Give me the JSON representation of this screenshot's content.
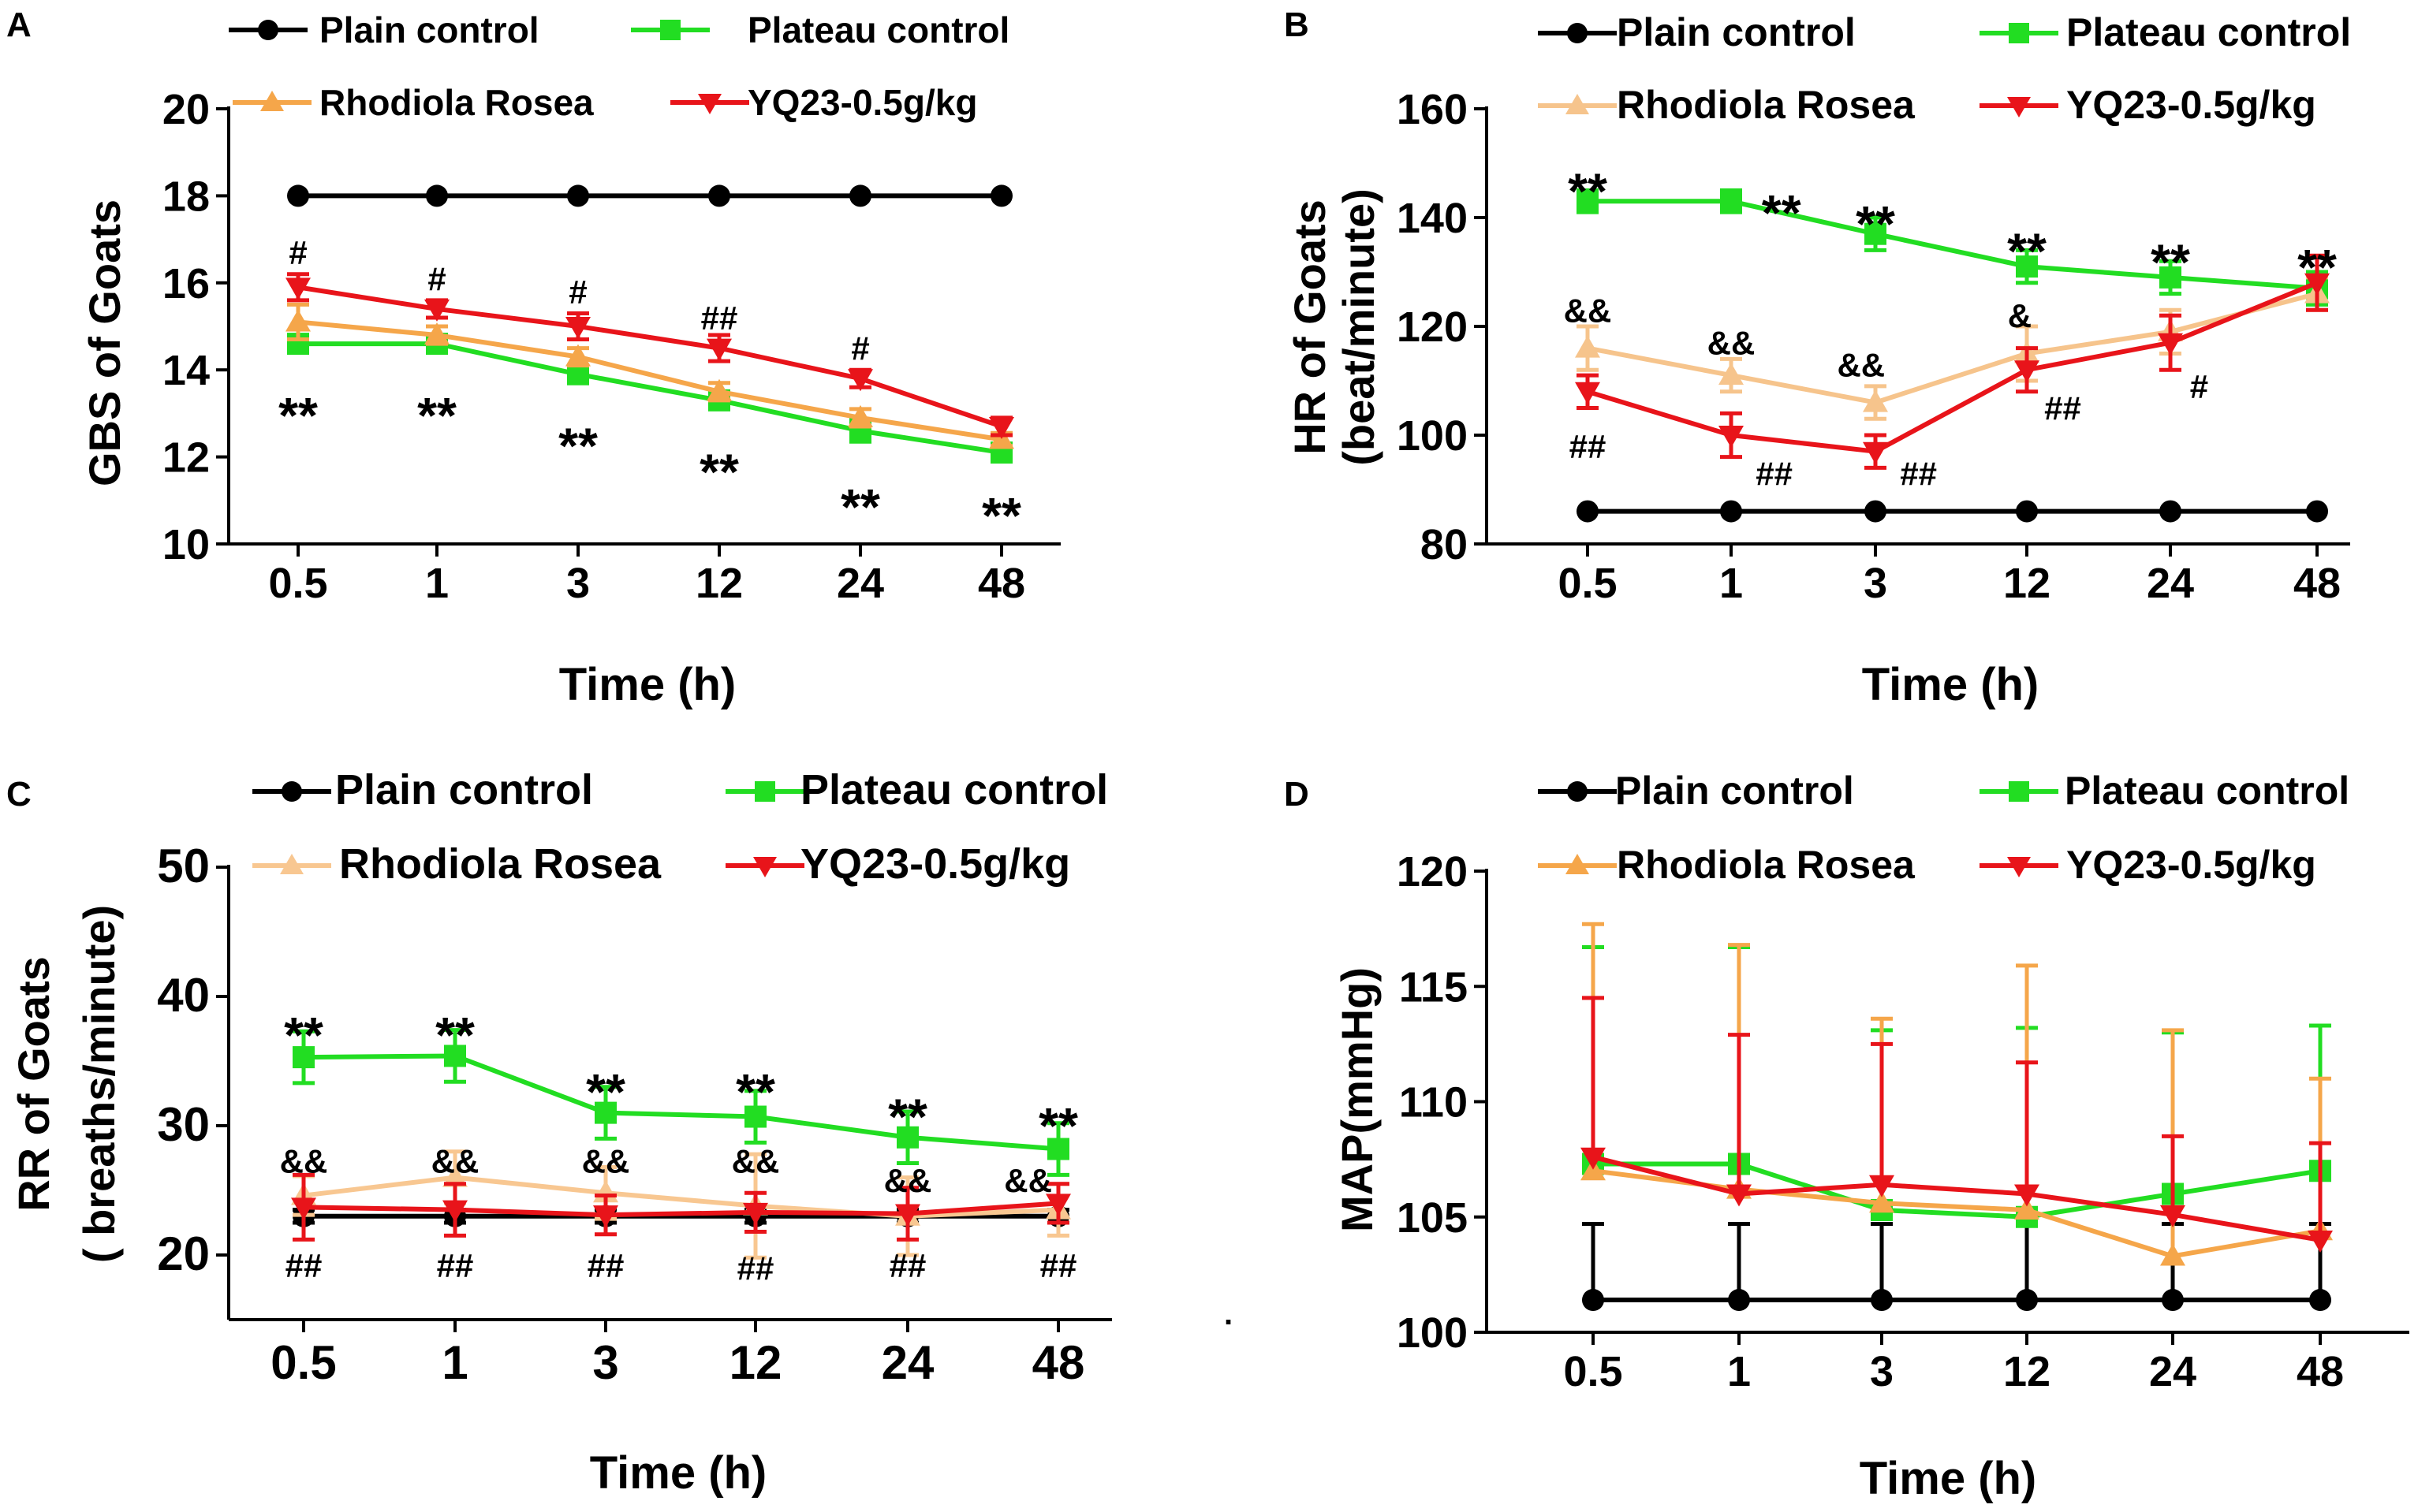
{
  "colors": {
    "plain": "#000000",
    "plateau": "#22dd22",
    "rhodiola_A": "#f5a64a",
    "rhodiola_B": "#f6c48c",
    "rhodiola_C": "#f8c791",
    "rhodiola_D": "#f5a64a",
    "yq23": "#e8141a"
  },
  "stray_mark": ".",
  "chart_data": [
    {
      "panel": "A",
      "type": "line",
      "title": "",
      "xlabel": "Time (h)",
      "ylabel": "GBS of Goats",
      "ylabel2": "",
      "categories": [
        "0.5",
        "1",
        "3",
        "12",
        "24",
        "48"
      ],
      "ylim": [
        10,
        20
      ],
      "yticks": [
        10,
        12,
        14,
        16,
        18,
        20
      ],
      "legend": [
        "Plain control",
        "Plateau control",
        "Rhodiola Rosea",
        "YQ23-0.5g/kg"
      ],
      "legend_placement": "top",
      "series": [
        {
          "name": "Plain control",
          "key": "plain",
          "marker": "circle",
          "values": [
            18,
            18,
            18,
            18,
            18,
            18
          ],
          "err": [
            0,
            0,
            0,
            0,
            0,
            0
          ],
          "err_dir": "both"
        },
        {
          "name": "Plateau control",
          "key": "plateau",
          "marker": "square",
          "values": [
            14.6,
            14.6,
            13.9,
            13.3,
            12.6,
            12.1
          ],
          "err": [
            0.2,
            0.2,
            0.2,
            0.2,
            0.25,
            0.2
          ],
          "err_dir": "both"
        },
        {
          "name": "Rhodiola Rosea",
          "key": "rhodiola_A",
          "marker": "triangle-up",
          "values": [
            15.1,
            14.8,
            14.3,
            13.5,
            12.9,
            12.4
          ],
          "err": [
            0.4,
            0.2,
            0.2,
            0.2,
            0.2,
            0.15
          ],
          "err_dir": "both"
        },
        {
          "name": "YQ23-0.5g/kg",
          "key": "yq23",
          "marker": "triangle-down",
          "values": [
            15.9,
            15.4,
            15.0,
            14.5,
            13.8,
            12.7
          ],
          "err": [
            0.3,
            0.2,
            0.3,
            0.3,
            0.2,
            0.2
          ],
          "err_dir": "both"
        }
      ],
      "annotations": [
        {
          "text": "#",
          "cat": 0,
          "y": 16.7,
          "size": "s"
        },
        {
          "text": "**",
          "cat": 0,
          "y": 13.1,
          "size": "l"
        },
        {
          "text": "#",
          "cat": 1,
          "y": 16.1,
          "size": "s"
        },
        {
          "text": "**",
          "cat": 1,
          "y": 13.1,
          "size": "l"
        },
        {
          "text": "#",
          "cat": 2,
          "y": 15.8,
          "size": "s"
        },
        {
          "text": "**",
          "cat": 2,
          "y": 12.4,
          "size": "l"
        },
        {
          "text": "##",
          "cat": 3,
          "y": 15.2,
          "size": "s"
        },
        {
          "text": "**",
          "cat": 3,
          "y": 11.8,
          "size": "l"
        },
        {
          "text": "#",
          "cat": 4,
          "y": 14.5,
          "size": "s"
        },
        {
          "text": "**",
          "cat": 4,
          "y": 11.0,
          "size": "l"
        },
        {
          "text": "**",
          "cat": 5,
          "y": 10.8,
          "size": "l"
        }
      ]
    },
    {
      "panel": "B",
      "type": "line",
      "title": "",
      "xlabel": "Time (h)",
      "ylabel": "HR of Goats",
      "ylabel2": "(beat/minute)",
      "categories": [
        "0.5",
        "1",
        "3",
        "12",
        "24",
        "48"
      ],
      "ylim": [
        80,
        160
      ],
      "yticks": [
        80,
        100,
        120,
        140,
        160
      ],
      "legend": [
        "Plain control",
        "Plateau control",
        "Rhodiola Rosea",
        "YQ23-0.5g/kg"
      ],
      "legend_placement": "top",
      "series": [
        {
          "name": "Plain control",
          "key": "plain",
          "marker": "circle",
          "values": [
            86,
            86,
            86,
            86,
            86,
            86
          ],
          "err": [
            0,
            0,
            0,
            0,
            0,
            0
          ],
          "err_dir": "both"
        },
        {
          "name": "Plateau control",
          "key": "plateau",
          "marker": "square",
          "values": [
            143,
            143,
            137,
            131,
            129,
            127
          ],
          "err": [
            2,
            2,
            3,
            3,
            3,
            3
          ],
          "err_dir": "both"
        },
        {
          "name": "Rhodiola Rosea",
          "key": "rhodiola_B",
          "marker": "triangle-up",
          "values": [
            116,
            111,
            106,
            115,
            119,
            126
          ],
          "err": [
            4,
            3,
            3,
            5,
            4,
            3
          ],
          "err_dir": "both"
        },
        {
          "name": "YQ23-0.5g/kg",
          "key": "yq23",
          "marker": "triangle-down",
          "values": [
            108,
            100,
            97,
            112,
            117,
            128
          ],
          "err": [
            3,
            4,
            3,
            4,
            5,
            5
          ],
          "err_dir": "both"
        }
      ],
      "annotations": [
        {
          "text": "**",
          "cat": 0,
          "y": 146,
          "size": "l"
        },
        {
          "text": "&&",
          "cat": 0,
          "y": 123,
          "size": "s"
        },
        {
          "text": "##",
          "cat": 0,
          "y": 98,
          "size": "s"
        },
        {
          "text": "**",
          "cat": 1,
          "y": 142,
          "size": "l",
          "dx": 0.35
        },
        {
          "text": "&&",
          "cat": 1,
          "y": 117,
          "size": "s"
        },
        {
          "text": "##",
          "cat": 1,
          "y": 93,
          "size": "s",
          "dx": 0.3
        },
        {
          "text": "**",
          "cat": 2,
          "y": 140,
          "size": "l"
        },
        {
          "text": "&&",
          "cat": 2,
          "y": 113,
          "size": "s",
          "dx": -0.1
        },
        {
          "text": "##",
          "cat": 2,
          "y": 93,
          "size": "s",
          "dx": 0.3
        },
        {
          "text": "**",
          "cat": 3,
          "y": 135,
          "size": "l"
        },
        {
          "text": "&",
          "cat": 3,
          "y": 122,
          "size": "s",
          "dx": -0.05
        },
        {
          "text": "##",
          "cat": 3,
          "y": 105,
          "size": "s",
          "dx": 0.25
        },
        {
          "text": "**",
          "cat": 4,
          "y": 133,
          "size": "l"
        },
        {
          "text": "#",
          "cat": 4,
          "y": 109,
          "size": "s",
          "dx": 0.2
        },
        {
          "text": "**",
          "cat": 5,
          "y": 132,
          "size": "l"
        }
      ]
    },
    {
      "panel": "C",
      "type": "line",
      "title": "",
      "xlabel": "Time (h)",
      "ylabel": "RR of Goats",
      "ylabel2": "( breaths/minute)",
      "categories": [
        "0.5",
        "1",
        "3",
        "12",
        "24",
        "48"
      ],
      "ylim": [
        15,
        50
      ],
      "yticks": [
        20,
        30,
        40,
        50
      ],
      "legend": [
        "Plain control",
        "Plateau control",
        "Rhodiola Rosea",
        "YQ23-0.5g/kg"
      ],
      "legend_placement": "top",
      "series": [
        {
          "name": "Plain control",
          "key": "plain",
          "marker": "circle",
          "values": [
            23,
            23,
            23,
            23,
            23,
            23
          ],
          "err": [
            0.5,
            0.5,
            0.5,
            0.5,
            0.5,
            0.5
          ],
          "err_dir": "both"
        },
        {
          "name": "Plateau control",
          "key": "plateau",
          "marker": "square",
          "values": [
            35.3,
            35.4,
            31,
            30.7,
            29.1,
            28.2
          ],
          "err": [
            2,
            2,
            2,
            2,
            2,
            2
          ],
          "err_dir": "both"
        },
        {
          "name": "Rhodiola Rosea",
          "key": "rhodiola_C",
          "marker": "triangle-up",
          "values": [
            24.6,
            26,
            24.8,
            23.8,
            23,
            23.5
          ],
          "err": [
            1.5,
            2,
            2,
            4,
            3,
            2
          ],
          "err_dir": "both"
        },
        {
          "name": "YQ23-0.5g/kg",
          "key": "yq23",
          "marker": "triangle-down",
          "values": [
            23.7,
            23.5,
            23.1,
            23.3,
            23.2,
            24
          ],
          "err": [
            2.5,
            2,
            1.5,
            1.5,
            2,
            1.5
          ],
          "err_dir": "both"
        }
      ],
      "annotations": [
        {
          "text": "**",
          "cat": 0,
          "y": 37.5,
          "size": "l"
        },
        {
          "text": "&&",
          "cat": 0,
          "y": 27.3,
          "size": "s"
        },
        {
          "text": "##",
          "cat": 0,
          "y": 19.2,
          "size": "s"
        },
        {
          "text": "**",
          "cat": 1,
          "y": 37.5,
          "size": "l"
        },
        {
          "text": "&&",
          "cat": 1,
          "y": 27.3,
          "size": "s"
        },
        {
          "text": "##",
          "cat": 1,
          "y": 19.2,
          "size": "s"
        },
        {
          "text": "**",
          "cat": 2,
          "y": 33.1,
          "size": "l"
        },
        {
          "text": "&&",
          "cat": 2,
          "y": 27.3,
          "size": "s"
        },
        {
          "text": "##",
          "cat": 2,
          "y": 19.2,
          "size": "s"
        },
        {
          "text": "**",
          "cat": 3,
          "y": 33.1,
          "size": "l"
        },
        {
          "text": "&&",
          "cat": 3,
          "y": 27.3,
          "size": "s"
        },
        {
          "text": "##",
          "cat": 3,
          "y": 19.0,
          "size": "s"
        },
        {
          "text": "**",
          "cat": 4,
          "y": 31.2,
          "size": "l"
        },
        {
          "text": "&&",
          "cat": 4,
          "y": 25.8,
          "size": "s"
        },
        {
          "text": "##",
          "cat": 4,
          "y": 19.2,
          "size": "s"
        },
        {
          "text": "**",
          "cat": 5,
          "y": 30.5,
          "size": "l"
        },
        {
          "text": "&&",
          "cat": 5,
          "y": 25.8,
          "size": "s",
          "dx": -0.2
        },
        {
          "text": "##",
          "cat": 5,
          "y": 19.2,
          "size": "s"
        }
      ]
    },
    {
      "panel": "D",
      "type": "line",
      "title": "",
      "xlabel": "Time (h)",
      "ylabel": "MAP(mmHg)",
      "ylabel2": "",
      "categories": [
        "0.5",
        "1",
        "3",
        "12",
        "24",
        "48"
      ],
      "ylim": [
        100,
        120
      ],
      "yticks": [
        100,
        105,
        110,
        115,
        120
      ],
      "legend": [
        "Plain control",
        "Plateau control",
        "Rhodiola Rosea",
        "YQ23-0.5g/kg"
      ],
      "legend_placement": "top",
      "series": [
        {
          "name": "Plain control",
          "key": "plain",
          "marker": "circle",
          "values": [
            101.4,
            101.4,
            101.4,
            101.4,
            101.4,
            101.4
          ],
          "err": [
            3.3,
            3.3,
            3.3,
            3.3,
            3.3,
            3.3
          ],
          "err_dir": "up"
        },
        {
          "name": "Plateau control",
          "key": "plateau",
          "marker": "square",
          "values": [
            107.3,
            107.3,
            105.3,
            105.0,
            106.0,
            107.0
          ],
          "err": [
            9.4,
            9.4,
            7.8,
            8.2,
            7.0,
            6.3
          ],
          "err_dir": "up"
        },
        {
          "name": "Rhodiola Rosea",
          "key": "rhodiola_D",
          "marker": "triangle-up",
          "values": [
            107.0,
            106.2,
            105.6,
            105.3,
            103.3,
            104.4
          ],
          "err": [
            10.7,
            10.6,
            8.0,
            10.6,
            9.8,
            6.6
          ],
          "err_dir": "up"
        },
        {
          "name": "YQ23-0.5g/kg",
          "key": "yq23",
          "marker": "triangle-down",
          "values": [
            107.6,
            106.0,
            106.4,
            106.0,
            105.1,
            104.0
          ],
          "err": [
            6.9,
            6.9,
            6.1,
            5.7,
            3.4,
            4.2
          ],
          "err_dir": "up"
        }
      ],
      "annotations": []
    }
  ]
}
